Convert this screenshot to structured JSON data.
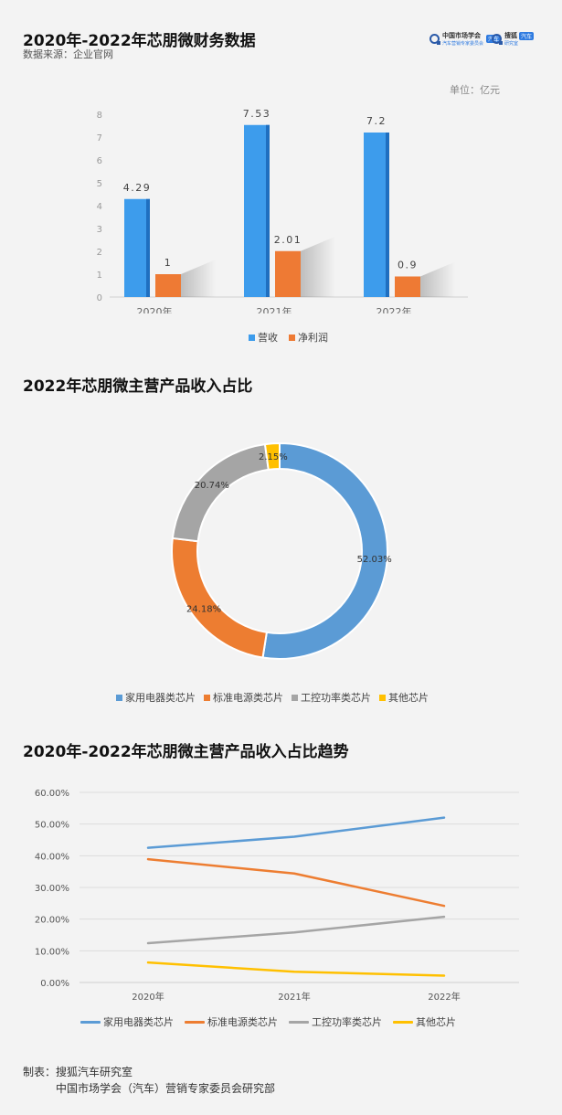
{
  "header": {
    "title": "2020年-2022年芯朋微财务数据",
    "source": "数据来源：企业官网",
    "logo1_text": "中国市场学会",
    "logo1_sub": "汽车营销专家委员会",
    "logo1_tag": "汽车",
    "logo2_text": "搜狐",
    "logo2_tag": "汽车",
    "logo2_sub": "研究室"
  },
  "chart1": {
    "unit": "单位：亿元",
    "legend": [
      "营收",
      "净利润"
    ]
  },
  "chart2": {
    "title": "2022年芯朋微主营产品收入占比"
  },
  "chart3": {
    "title": "2020年-2022年芯朋微主营产品收入占比趋势"
  },
  "footer": {
    "line1": "制表：搜狐汽车研究室",
    "line2": "中国市场学会（汽车）营销专家委员会研究部"
  },
  "colors": {
    "blue": "#3d9cec",
    "orange": "#ee7a34",
    "pie_blue": "#5b9bd5",
    "pie_orange": "#ed7d31",
    "gray": "#a5a5a5",
    "yellow": "#ffc000"
  },
  "chart_data": [
    {
      "type": "bar",
      "categories": [
        "2020年",
        "2021年",
        "2022年"
      ],
      "series": [
        {
          "name": "营收",
          "values": [
            4.29,
            7.53,
            7.2
          ],
          "labels": [
            "4.29",
            "7.53",
            "7.2"
          ]
        },
        {
          "name": "净利润",
          "values": [
            1,
            2.01,
            0.9
          ],
          "labels": [
            "1",
            "2.01",
            "0.9"
          ]
        }
      ],
      "ylim": [
        0,
        8
      ],
      "yticks": [
        "0",
        "1",
        "2",
        "3",
        "4",
        "5",
        "6",
        "7",
        "8"
      ],
      "legend_position": "bottom"
    },
    {
      "type": "pie",
      "labels": [
        "家用电器类芯片",
        "标准电源类芯片",
        "工控功率类芯片",
        "其他芯片"
      ],
      "values": [
        52.03,
        24.18,
        20.74,
        2.15
      ],
      "value_labels": [
        "52.03%",
        "24.18%",
        "20.74%",
        "2.15%"
      ],
      "donut": true,
      "legend_position": "bottom"
    },
    {
      "type": "line",
      "categories": [
        "2020年",
        "2021年",
        "2022年"
      ],
      "series": [
        {
          "name": "家用电器类芯片",
          "values": [
            42.5,
            46.0,
            52.03
          ]
        },
        {
          "name": "标准电源类芯片",
          "values": [
            38.9,
            34.4,
            24.18
          ]
        },
        {
          "name": "工控功率类芯片",
          "values": [
            12.4,
            15.8,
            20.74
          ]
        },
        {
          "name": "其他芯片",
          "values": [
            6.3,
            3.4,
            2.15
          ]
        }
      ],
      "ylim": [
        0,
        60
      ],
      "yticks": [
        "0.00%",
        "10.00%",
        "20.00%",
        "30.00%",
        "40.00%",
        "50.00%",
        "60.00%"
      ],
      "grid": true,
      "legend_position": "bottom"
    }
  ]
}
